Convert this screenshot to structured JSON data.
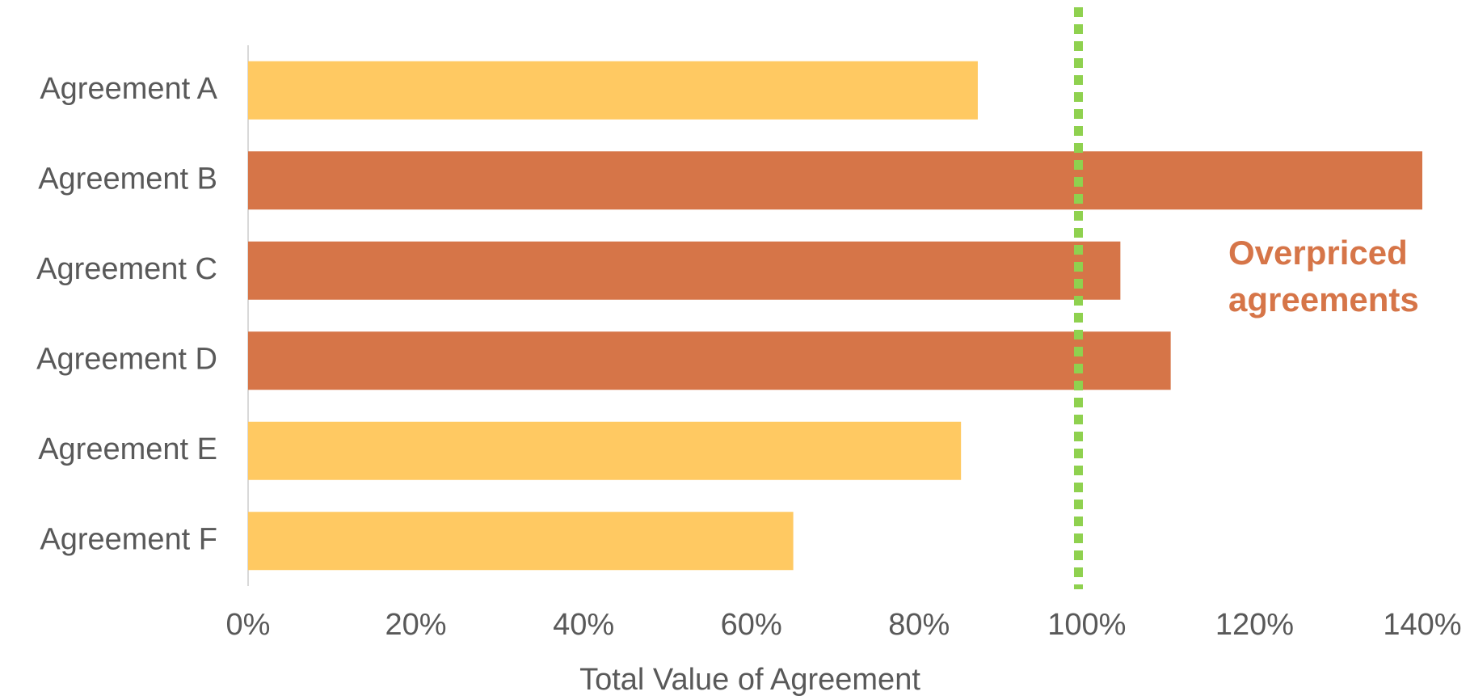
{
  "chart_data": {
    "type": "bar",
    "orientation": "horizontal",
    "categories": [
      "Agreement A",
      "Agreement B",
      "Agreement C",
      "Agreement D",
      "Agreement E",
      "Agreement F"
    ],
    "values": [
      87,
      140,
      104,
      110,
      85,
      65
    ],
    "colors": [
      "#FFC962",
      "#D67548",
      "#D67548",
      "#D67548",
      "#FFC962",
      "#FFC962"
    ],
    "xlabel": "Total Value of Agreement",
    "xlim": [
      0,
      140
    ],
    "xticks": [
      {
        "value": 0,
        "label": "0%"
      },
      {
        "value": 20,
        "label": "20%"
      },
      {
        "value": 40,
        "label": "40%"
      },
      {
        "value": 60,
        "label": "60%"
      },
      {
        "value": 80,
        "label": "80%"
      },
      {
        "value": 100,
        "label": "100%"
      },
      {
        "value": 120,
        "label": "120%"
      },
      {
        "value": 140,
        "label": "140%"
      }
    ],
    "reference_line": {
      "value": 99,
      "color": "#8FD14F"
    },
    "annotation": {
      "lines": [
        "Overpriced",
        "agreements"
      ],
      "color": "#D67548"
    },
    "grid": false
  }
}
